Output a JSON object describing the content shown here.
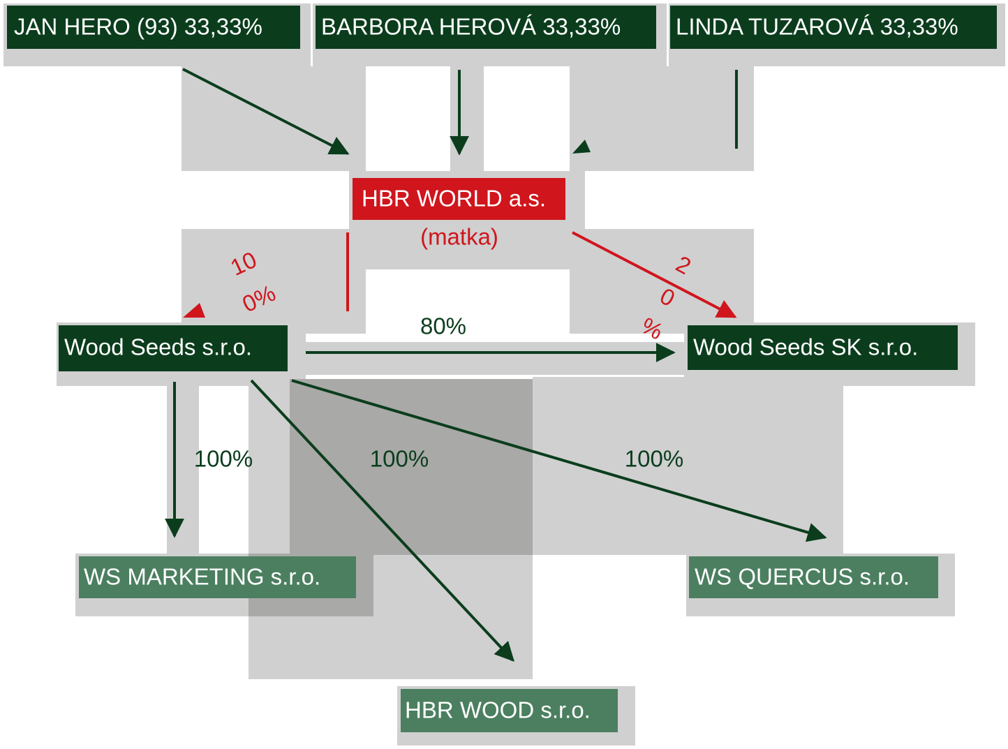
{
  "nodes": [
    {
      "label": "JAN HERO (93) 33,33%"
    },
    {
      "label": "BARBORA HEROVÁ 33,33%"
    },
    {
      "label": "LINDA TUZAROVÁ 33,33%"
    },
    {
      "label": "HBR WORLD a.s.",
      "sublabel": "(matka)"
    },
    {
      "label": "Wood Seeds s.r.o."
    },
    {
      "label": "Wood Seeds SK s.r.o."
    },
    {
      "label": "WS MARKETING s.r.o."
    },
    {
      "label": "WS QUERCUS s.r.o."
    },
    {
      "label": "HBR WOOD s.r.o."
    }
  ],
  "edges": [
    {
      "label_lines": [
        "10",
        "0%"
      ]
    },
    {
      "label_lines": [
        "2",
        "0",
        "%"
      ]
    },
    {
      "label": "80%"
    },
    {
      "label": "100%"
    },
    {
      "label": "100%"
    },
    {
      "label": "100%"
    }
  ]
}
